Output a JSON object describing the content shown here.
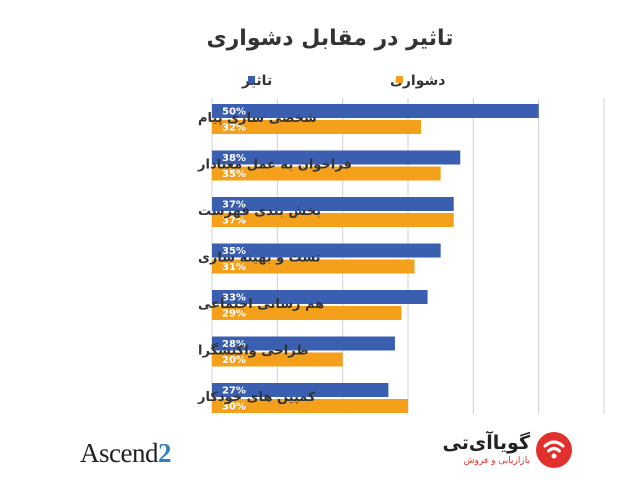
{
  "chart_data": {
    "type": "bar",
    "orientation": "horizontal",
    "title": "تاثیر در مقابل دشواری",
    "categories": [
      "شخصی سازی پیام",
      "فراخوان به عمل معنادار",
      "بخش بندی فهرست",
      "تست و بهینه سازی",
      "هم رسانی اجتماعی",
      "طراحی واکنشگرا",
      "کمپین های خودکار"
    ],
    "series": [
      {
        "name": "تاثیر",
        "color": "#3b5fb0",
        "values": [
          50,
          38,
          37,
          35,
          33,
          28,
          27
        ]
      },
      {
        "name": "دشواری",
        "color": "#f5a01a",
        "values": [
          32,
          35,
          37,
          31,
          29,
          20,
          30
        ]
      }
    ],
    "value_suffix": "%",
    "xlim": [
      0,
      60
    ],
    "grid": "vertical",
    "legend_position": "top-right"
  },
  "logos": {
    "ascend_text": "Ascend",
    "ascend_number": "2",
    "goyait_name": "گویاآی‌تی",
    "goyait_tagline": "بازاریابی و فروش"
  }
}
